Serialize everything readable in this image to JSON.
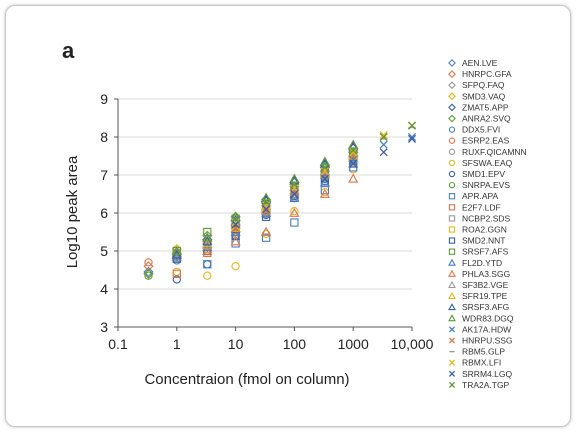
{
  "panel_letter": "a",
  "chart_data": {
    "type": "scatter",
    "title": "",
    "xlabel": "Concentraion (fmol on column)",
    "ylabel": "Log10 peak area",
    "x_scale": "log",
    "xlim": [
      0.1,
      10000
    ],
    "ylim": [
      3,
      9
    ],
    "x_ticks": [
      0.1,
      1,
      10,
      100,
      1000,
      10000
    ],
    "x_tick_labels": [
      "0.1",
      "1",
      "10",
      "100",
      "1000",
      "10,000"
    ],
    "y_ticks": [
      3,
      4,
      5,
      6,
      7,
      8,
      9
    ],
    "y_tick_labels": [
      "3",
      "4",
      "5",
      "6",
      "7",
      "8",
      "9"
    ],
    "grid": "horizontal",
    "legend_position": "right",
    "series": [
      {
        "name": "AEN.LVE",
        "marker": "diamond",
        "color": "#4a7fc1",
        "x": [
          0.33,
          1,
          3.3,
          10,
          33,
          100,
          330,
          1000
        ],
        "y": [
          4.45,
          4.9,
          5.1,
          5.6,
          6.0,
          6.5,
          7.0,
          7.5
        ]
      },
      {
        "name": "HNRPC.GFA",
        "marker": "diamond",
        "color": "#d9744a",
        "x": [
          0.33,
          1,
          3.3,
          10,
          33,
          100,
          330,
          1000
        ],
        "y": [
          4.6,
          4.95,
          5.25,
          5.7,
          6.1,
          6.6,
          7.1,
          7.6
        ]
      },
      {
        "name": "SFPQ.FAQ",
        "marker": "diamond",
        "color": "#9a9a9a",
        "x": [
          0.33,
          1,
          3.3,
          10,
          33,
          100,
          330,
          1000
        ],
        "y": [
          4.4,
          4.85,
          5.2,
          5.5,
          6.05,
          6.4,
          6.95,
          7.45
        ]
      },
      {
        "name": "SMD3.VAQ",
        "marker": "diamond",
        "color": "#e3b51c",
        "x": [
          1,
          3.3,
          10,
          33,
          100,
          330,
          1000
        ],
        "y": [
          5.05,
          5.3,
          5.7,
          6.2,
          6.7,
          7.2,
          7.7
        ]
      },
      {
        "name": "ZMAT5.APP",
        "marker": "diamond",
        "color": "#3a5da8",
        "x": [
          1,
          3.3,
          10,
          33,
          100,
          330,
          1000
        ],
        "y": [
          4.9,
          5.3,
          5.8,
          6.3,
          6.8,
          7.25,
          7.7
        ]
      },
      {
        "name": "ANRA2.SVQ",
        "marker": "diamond",
        "color": "#5f9a3c",
        "x": [
          0.33,
          1,
          3.3,
          10,
          33,
          100,
          330,
          1000
        ],
        "y": [
          4.4,
          4.9,
          5.4,
          5.9,
          6.35,
          6.8,
          7.2,
          7.6
        ]
      },
      {
        "name": "DDX5.FVI",
        "marker": "circle",
        "color": "#4a7fc1",
        "x": [
          1,
          3.3,
          10,
          33,
          100,
          330,
          1000
        ],
        "y": [
          4.75,
          5.0,
          5.5,
          6.0,
          6.5,
          6.95,
          7.4
        ]
      },
      {
        "name": "ESRP2.EAS",
        "marker": "circle",
        "color": "#d9744a",
        "x": [
          0.33,
          1,
          3.3,
          10,
          33,
          100,
          330,
          1000
        ],
        "y": [
          4.7,
          4.85,
          5.2,
          5.6,
          6.1,
          6.5,
          7.0,
          7.55
        ]
      },
      {
        "name": "RUXF.QICAMNN",
        "marker": "circle",
        "color": "#9a9a9a",
        "x": [
          1,
          3.3,
          10,
          33,
          100,
          330,
          1000
        ],
        "y": [
          4.8,
          5.05,
          5.45,
          5.95,
          6.45,
          6.9,
          7.35
        ]
      },
      {
        "name": "SFSWA.EAQ",
        "marker": "circle",
        "color": "#e3b51c",
        "x": [
          1,
          3.3,
          10,
          33,
          100,
          330,
          1000
        ],
        "y": [
          4.45,
          4.35,
          4.6,
          5.45,
          6.05,
          6.55,
          7.15
        ]
      },
      {
        "name": "SMD1.EPV",
        "marker": "circle",
        "color": "#3a5da8",
        "x": [
          1,
          3.3,
          10,
          33,
          100,
          330,
          1000
        ],
        "y": [
          4.25,
          4.65,
          5.4,
          5.95,
          6.45,
          6.9,
          7.4
        ]
      },
      {
        "name": "SNRPA.EVS",
        "marker": "circle",
        "color": "#5f9a3c",
        "x": [
          0.33,
          1,
          3.3,
          10,
          33,
          100,
          330,
          1000
        ],
        "y": [
          4.35,
          4.95,
          5.15,
          5.55,
          6.05,
          6.5,
          6.95,
          7.45
        ]
      },
      {
        "name": "APR.APA",
        "marker": "square",
        "color": "#4a7fc1",
        "x": [
          1,
          3.3,
          10,
          33,
          100,
          330,
          1000
        ],
        "y": [
          4.8,
          4.65,
          5.2,
          5.35,
          5.75,
          6.6,
          7.2
        ]
      },
      {
        "name": "E2F7.LDF",
        "marker": "square",
        "color": "#d9744a",
        "x": [
          1,
          3.3,
          10,
          33,
          100,
          330,
          1000
        ],
        "y": [
          4.4,
          4.95,
          5.55,
          6.1,
          6.55,
          7.05,
          7.5
        ]
      },
      {
        "name": "NCBP2.SDS",
        "marker": "square",
        "color": "#9a9a9a",
        "x": [
          1,
          3.3,
          10,
          33,
          100,
          330,
          1000
        ],
        "y": [
          4.95,
          5.2,
          5.65,
          6.05,
          6.5,
          7.0,
          7.45
        ]
      },
      {
        "name": "ROA2.GGN",
        "marker": "square",
        "color": "#e3b51c",
        "x": [
          1,
          3.3,
          10,
          33,
          100,
          330,
          1000
        ],
        "y": [
          5.0,
          5.05,
          5.5,
          6.0,
          6.55,
          7.0,
          7.5
        ]
      },
      {
        "name": "SMD2.NNT",
        "marker": "square",
        "color": "#3a5da8",
        "x": [
          1,
          3.3,
          10,
          33,
          100,
          330,
          1000
        ],
        "y": [
          4.8,
          5.0,
          5.4,
          5.9,
          6.4,
          6.85,
          7.3
        ]
      },
      {
        "name": "SRSF7.AFS",
        "marker": "square",
        "color": "#5f9a3c",
        "x": [
          1,
          3.3,
          10,
          33,
          100,
          330,
          1000
        ],
        "y": [
          5.0,
          5.5,
          5.85,
          6.25,
          6.7,
          7.1,
          7.55
        ]
      },
      {
        "name": "FL2D.YTD",
        "marker": "triangle",
        "color": "#4a7fc1",
        "x": [
          1,
          3.3,
          10,
          33,
          100,
          330,
          1000
        ],
        "y": [
          4.85,
          5.1,
          5.5,
          6.0,
          6.4,
          6.8,
          7.3
        ]
      },
      {
        "name": "PHLA3.SGG",
        "marker": "triangle",
        "color": "#d9744a",
        "x": [
          1,
          3.3,
          10,
          33,
          100,
          330,
          1000
        ],
        "y": [
          4.9,
          5.0,
          5.25,
          5.5,
          6.0,
          6.5,
          6.9
        ]
      },
      {
        "name": "SF3B2.VGE",
        "marker": "triangle",
        "color": "#9a9a9a",
        "x": [
          1,
          3.3,
          10,
          33,
          100,
          330,
          1000
        ],
        "y": [
          4.9,
          5.15,
          5.6,
          6.05,
          6.55,
          7.0,
          7.45
        ]
      },
      {
        "name": "SFR19.TPE",
        "marker": "triangle",
        "color": "#e3b51c",
        "x": [
          1,
          3.3,
          10,
          33,
          100,
          330,
          1000
        ],
        "y": [
          5.0,
          5.2,
          5.6,
          6.1,
          6.6,
          7.05,
          7.5
        ]
      },
      {
        "name": "SRSF3.AFG",
        "marker": "triangle",
        "color": "#3a5da8",
        "x": [
          1,
          3.3,
          10,
          33,
          100,
          330,
          1000
        ],
        "y": [
          4.9,
          5.25,
          5.75,
          6.35,
          6.85,
          7.3,
          7.75
        ]
      },
      {
        "name": "WDR83.DGQ",
        "marker": "triangle",
        "color": "#5f9a3c",
        "x": [
          1,
          3.3,
          10,
          33,
          100,
          330,
          1000
        ],
        "y": [
          5.0,
          5.35,
          5.9,
          6.4,
          6.9,
          7.35,
          7.8
        ]
      },
      {
        "name": "AK17A.HDW",
        "marker": "x",
        "color": "#4a7fc1",
        "x": [
          10,
          33,
          100,
          330,
          1000,
          3300,
          10000
        ],
        "y": [
          5.8,
          6.2,
          6.6,
          7.0,
          7.4,
          7.8,
          8.0
        ]
      },
      {
        "name": "HNRPU.SSG",
        "marker": "x",
        "color": "#d9744a",
        "x": [
          10,
          33,
          100,
          330,
          1000,
          3300,
          10000
        ],
        "y": [
          5.6,
          6.05,
          6.55,
          7.05,
          7.5,
          8.0,
          8.3
        ]
      },
      {
        "name": "RBM5.GLP",
        "marker": "dash",
        "color": "#9a9a9a",
        "x": [
          10,
          33,
          100,
          330,
          1000,
          3300,
          10000
        ],
        "y": [
          5.7,
          6.15,
          6.6,
          7.05,
          7.55,
          7.95,
          8.25
        ]
      },
      {
        "name": "RBMX.LFI",
        "marker": "x",
        "color": "#e3b51c",
        "x": [
          10,
          33,
          100,
          330,
          1000,
          3300,
          10000
        ],
        "y": [
          5.75,
          6.2,
          6.65,
          7.1,
          7.6,
          8.05,
          8.3
        ]
      },
      {
        "name": "SRRM4.LGQ",
        "marker": "x",
        "color": "#3a5da8",
        "x": [
          10,
          33,
          100,
          330,
          1000,
          3300,
          10000
        ],
        "y": [
          5.7,
          6.1,
          6.5,
          6.9,
          7.3,
          7.6,
          7.95
        ]
      },
      {
        "name": "TRA2A.TGP",
        "marker": "x",
        "color": "#5f9a3c",
        "x": [
          10,
          33,
          100,
          330,
          1000,
          3300,
          10000
        ],
        "y": [
          5.85,
          6.3,
          6.75,
          7.2,
          7.65,
          8.0,
          8.3
        ]
      }
    ]
  }
}
